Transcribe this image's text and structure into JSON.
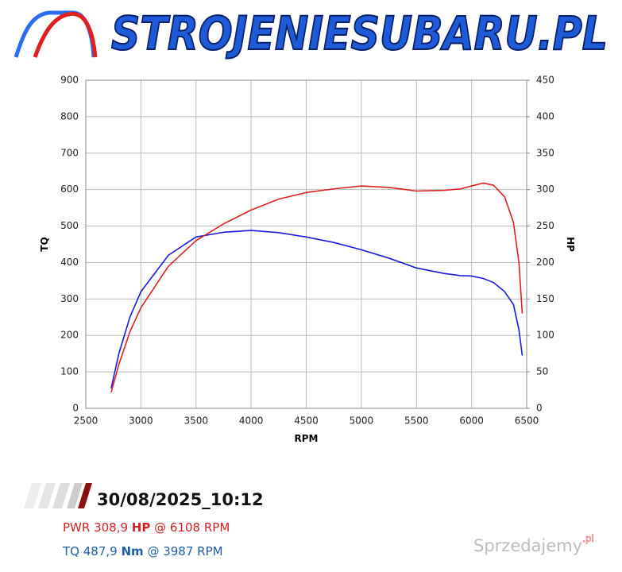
{
  "header": {
    "logo_text": "STROJENIESUBARU.PL"
  },
  "chart_data": {
    "type": "line",
    "x_label": "RPM",
    "y_label": "TQ",
    "y2_label": "HP",
    "x": [
      2730,
      2800,
      2900,
      3000,
      3250,
      3500,
      3750,
      4000,
      4250,
      4500,
      4750,
      5000,
      5250,
      5500,
      5750,
      5900,
      6000,
      6108,
      6200,
      6300,
      6380,
      6430,
      6460
    ],
    "series": [
      {
        "name": "TQ",
        "color": "#1a1adf",
        "values": [
          55,
          150,
          250,
          320,
          420,
          470,
          483,
          488,
          482,
          470,
          455,
          435,
          412,
          385,
          370,
          364,
          363,
          356,
          345,
          320,
          285,
          215,
          145
        ]
      },
      {
        "name": "HP",
        "color": "#e02020",
        "axis": "y2",
        "values": [
          22,
          60,
          105,
          138,
          195,
          230,
          253,
          272,
          287,
          296,
          301,
          305,
          303,
          298,
          299,
          301,
          305,
          309,
          306,
          290,
          255,
          200,
          130
        ]
      }
    ],
    "xlim": [
      2500,
      6500
    ],
    "xticks": [
      2500,
      3000,
      3500,
      4000,
      4500,
      5000,
      5500,
      6000,
      6500
    ],
    "ylim": [
      0,
      900
    ],
    "yticks": [
      0,
      100,
      200,
      300,
      400,
      500,
      600,
      700,
      800,
      900
    ],
    "y2lim": [
      0,
      450
    ],
    "y2ticks": [
      0,
      50,
      100,
      150,
      200,
      250,
      300,
      350,
      400,
      450
    ],
    "grid": true
  },
  "footer": {
    "datetime": "30/08/2025_10:12",
    "pwr": {
      "label": "PWR 308,9",
      "unit": "HP",
      "at": "@ 6108 RPM"
    },
    "tq": {
      "label": "TQ 487,9",
      "unit": "Nm",
      "at": "@ 3987 RPM"
    },
    "watermark": {
      "name": "Sprzedajemy",
      "tld": ".pl"
    }
  }
}
